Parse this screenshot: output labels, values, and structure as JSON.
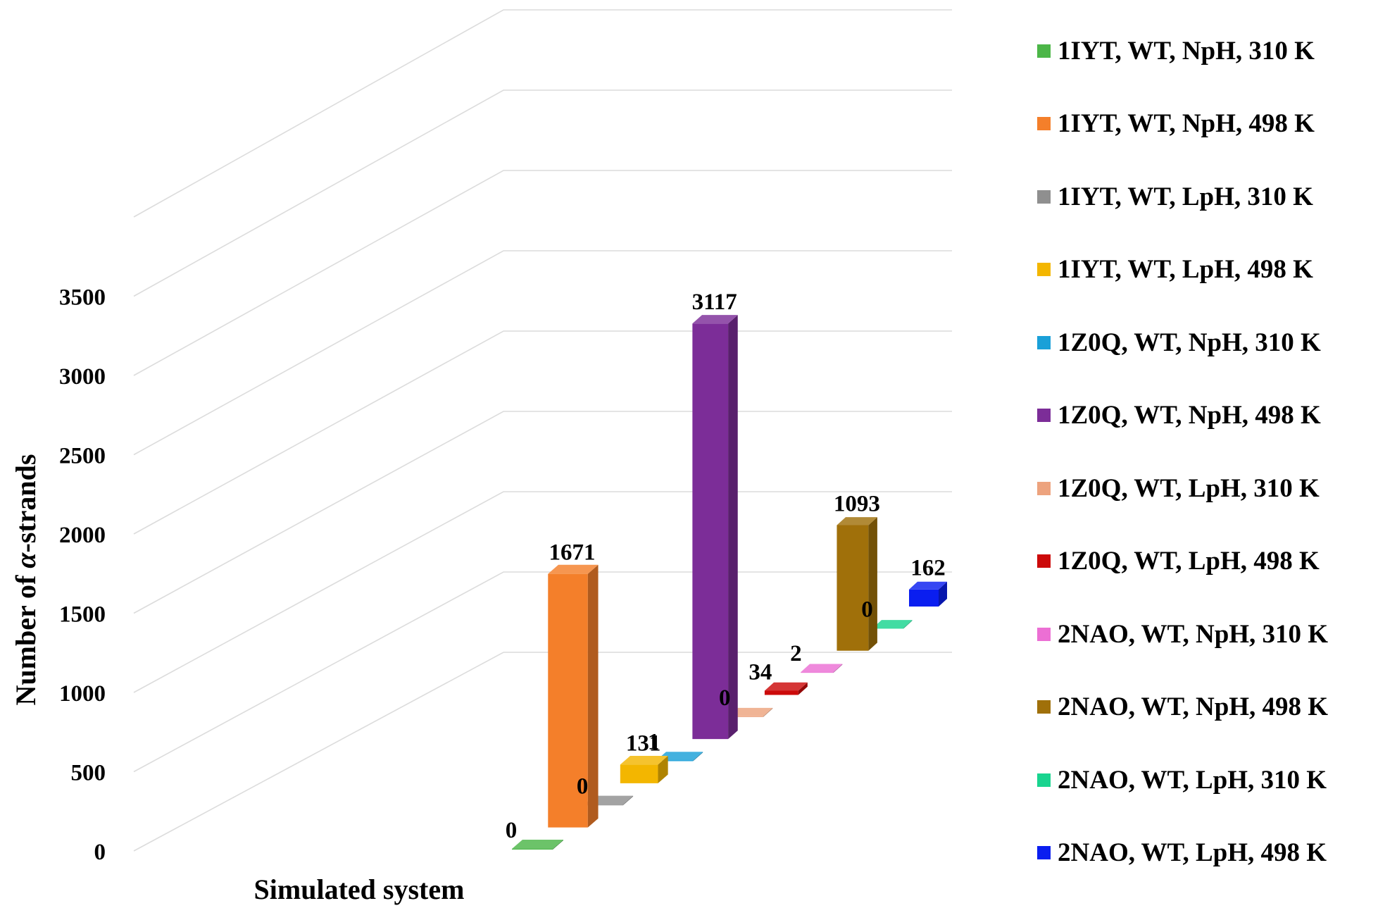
{
  "chart_data": {
    "type": "bar",
    "ylabel_prefix": "Number of ",
    "ylabel_symbol": "α",
    "ylabel_suffix": "-strands",
    "xlabel": "Simulated system",
    "ylim": [
      0,
      3500
    ],
    "yticks": [
      "0",
      "500",
      "1000",
      "1500",
      "2000",
      "2500",
      "3000",
      "3500"
    ],
    "legend_position": "right",
    "categories": [
      "1IYT, WT, NpH, 310 K",
      "1IYT, WT, NpH, 498 K",
      "1IYT, WT, LpH, 310 K",
      "1IYT, WT, LpH, 498 K",
      "1Z0Q, WT, NpH, 310 K",
      "1Z0Q, WT, NpH, 498 K",
      "1Z0Q, WT, LpH, 310 K",
      "1Z0Q, WT, LpH, 498 K",
      "2NAO, WT, NpH, 310 K",
      "2NAO, WT, NpH, 498 K",
      "2NAO, WT, LpH, 310 K",
      "2NAO, WT, LpH, 498 K"
    ],
    "values": [
      0,
      1671,
      0,
      131,
      1,
      3117,
      0,
      34,
      2,
      1093,
      0,
      162
    ],
    "value_labels": [
      "0",
      "1671",
      "0",
      "131",
      "1",
      "3117",
      "0",
      "34",
      "2",
      "1093",
      "0",
      "162"
    ],
    "colors": [
      "#4cb648",
      "#f47f2a",
      "#8f8f8f",
      "#f3b600",
      "#1aa0d8",
      "#7c2d98",
      "#eda37e",
      "#cc0a0a",
      "#ec6fd4",
      "#a0700a",
      "#19d48f",
      "#0a1ef0"
    ]
  }
}
